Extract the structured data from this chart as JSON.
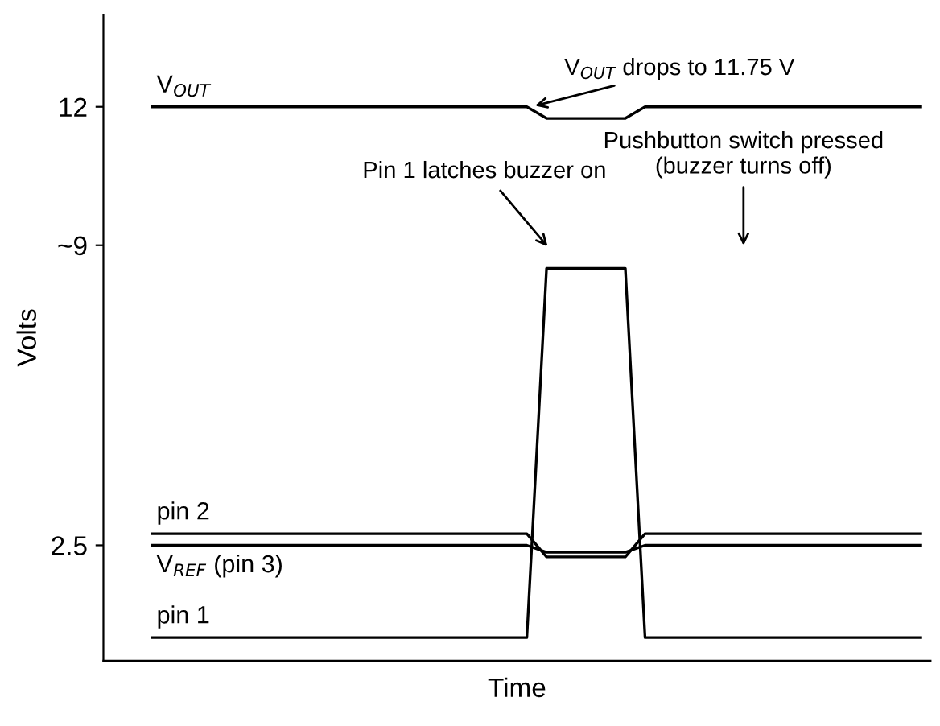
{
  "chart_data": {
    "type": "line",
    "xlabel": "Time",
    "ylabel": "Volts",
    "categories": [
      null,
      null,
      null,
      null,
      null,
      null,
      null,
      null,
      null,
      null,
      null,
      null,
      null,
      null,
      null,
      null,
      null,
      null,
      null,
      null,
      null,
      null,
      null,
      null,
      null,
      null,
      null,
      null,
      null,
      null,
      null,
      null,
      null,
      null,
      null,
      null,
      null,
      null,
      null,
      null
    ],
    "ylim": [
      0,
      14
    ],
    "yticks": [
      2.5,
      {
        "value": 9,
        "label": "~9"
      },
      12
    ],
    "grid": false,
    "legend": false,
    "marker": "none",
    "line_style": "solid",
    "series": [
      {
        "name": "V$_{OUT}$",
        "color": "#000000",
        "values": [
          12,
          12,
          12,
          12,
          12,
          12,
          12,
          12,
          12,
          12,
          12,
          12,
          12,
          12,
          12,
          12,
          12,
          12,
          12,
          12,
          11.75,
          11.75,
          11.75,
          11.75,
          11.75,
          12,
          12,
          12,
          12,
          12,
          12,
          12,
          12,
          12,
          12,
          12,
          12,
          12,
          12,
          12
        ]
      },
      {
        "name": "pin 2",
        "color": "#000000",
        "values": [
          2.75,
          2.75,
          2.75,
          2.75,
          2.75,
          2.75,
          2.75,
          2.75,
          2.75,
          2.75,
          2.75,
          2.75,
          2.75,
          2.75,
          2.75,
          2.75,
          2.75,
          2.75,
          2.75,
          2.75,
          2.25,
          2.25,
          2.25,
          2.25,
          2.25,
          2.75,
          2.75,
          2.75,
          2.75,
          2.75,
          2.75,
          2.75,
          2.75,
          2.75,
          2.75,
          2.75,
          2.75,
          2.75,
          2.75,
          2.75
        ]
      },
      {
        "name": "V$_{REF}$ (pin 3)",
        "color": "#000000",
        "values": [
          2.5,
          2.5,
          2.5,
          2.5,
          2.5,
          2.5,
          2.5,
          2.5,
          2.5,
          2.5,
          2.5,
          2.5,
          2.5,
          2.5,
          2.5,
          2.5,
          2.5,
          2.5,
          2.5,
          2.5,
          2.35,
          2.35,
          2.35,
          2.35,
          2.35,
          2.5,
          2.5,
          2.5,
          2.5,
          2.5,
          2.5,
          2.5,
          2.5,
          2.5,
          2.5,
          2.5,
          2.5,
          2.5,
          2.5,
          2.5
        ]
      },
      {
        "name": "pin 1",
        "color": "#000000",
        "values": [
          0.5,
          0.5,
          0.5,
          0.5,
          0.5,
          0.5,
          0.5,
          0.5,
          0.5,
          0.5,
          0.5,
          0.5,
          0.5,
          0.5,
          0.5,
          0.5,
          0.5,
          0.5,
          0.5,
          0.5,
          8.5,
          8.5,
          8.5,
          8.5,
          8.5,
          0.5,
          0.5,
          0.5,
          0.5,
          0.5,
          0.5,
          0.5,
          0.5,
          0.5,
          0.5,
          0.5,
          0.5,
          0.5,
          0.5,
          0.5
        ]
      }
    ],
    "annotations": [
      "V$_{OUT}$ drops to 11.75 V",
      "Pin 1 latches buzzer on",
      "Pushbutton switch pressed\n(buzzer turns off)"
    ]
  }
}
